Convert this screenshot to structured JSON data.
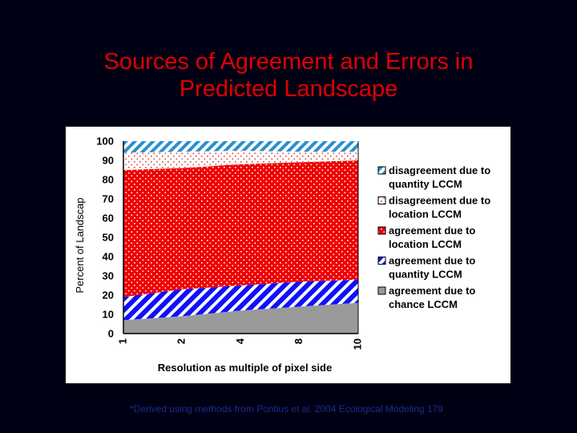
{
  "slide": {
    "title_line1": "Sources of Agreement and Errors in",
    "title_line2": "Predicted Landscape",
    "footnote": "*Derived using methods from Pontius et al. 2004 Ecological Modeling 179"
  },
  "chart_data": {
    "type": "area",
    "stacked": true,
    "xlabel": "Resolution as multiple of pixel side",
    "ylabel": "Percent of Landscap",
    "ylim": [
      0,
      100
    ],
    "yticks": [
      0,
      10,
      20,
      30,
      40,
      50,
      60,
      70,
      80,
      90,
      100
    ],
    "categories": [
      "1",
      "2",
      "4",
      "8",
      "10"
    ],
    "series": [
      {
        "name": "agreement due to chance LCCM",
        "color": "#9a9a9a",
        "pattern": "solid",
        "values": [
          7,
          9,
          12,
          14,
          16
        ]
      },
      {
        "name": "agreement due to quantity LCCM",
        "color": "#1010ff",
        "pattern": "diagonal",
        "values": [
          12,
          14,
          13,
          13,
          12
        ]
      },
      {
        "name": "agreement due to location LCCM",
        "color": "#ee0000",
        "pattern": "dots",
        "values": [
          66,
          63,
          63,
          62,
          62
        ]
      },
      {
        "name": "disagreement due to location LCCM",
        "color": "#f2b8b8",
        "pattern": "dots",
        "values": [
          9,
          8.5,
          7,
          5.5,
          4.5
        ]
      },
      {
        "name": "disagreement due to quantity LCCM",
        "color": "#2a8fd0",
        "pattern": "diagonal",
        "values": [
          6,
          5.5,
          5,
          5.5,
          5.5
        ]
      }
    ],
    "legend_position": "right",
    "grid": false
  }
}
